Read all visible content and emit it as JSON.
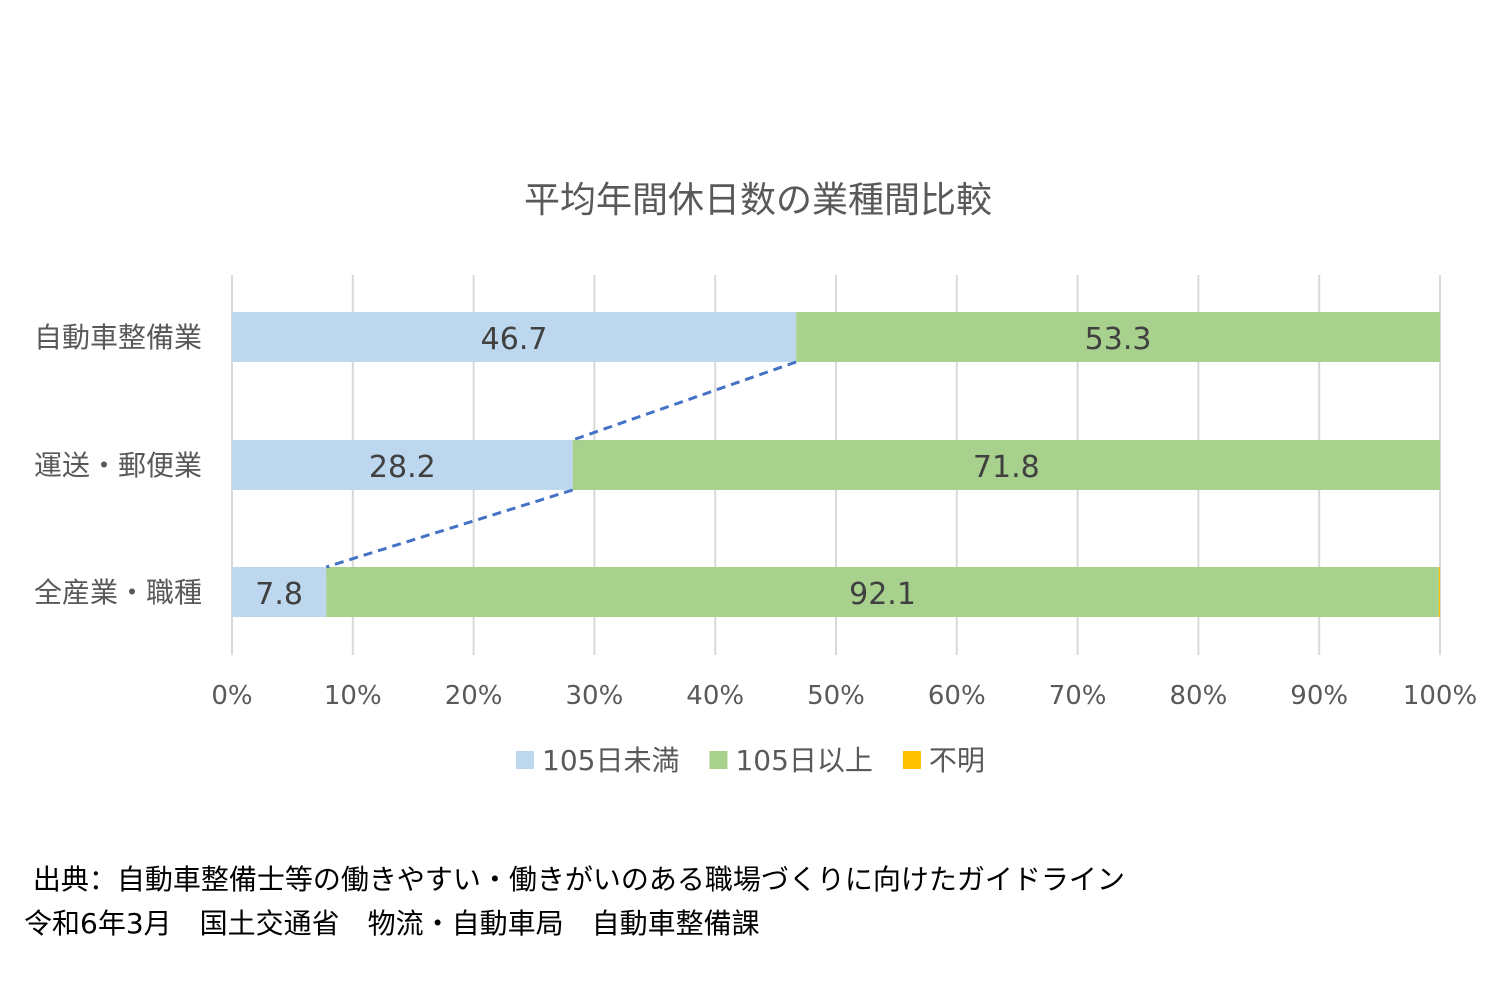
{
  "chart_data": {
    "type": "bar",
    "orientation": "horizontal",
    "stacked": "percent",
    "title": "平均年間休日数の業種間比較",
    "categories": [
      "自動車整備業",
      "運送・郵便業",
      "全産業・職種"
    ],
    "series": [
      {
        "name": "105日未満",
        "values": [
          46.7,
          28.2,
          7.8
        ],
        "labels": [
          "46.7",
          "28.2",
          "7.8"
        ],
        "color": "#bdd7ee"
      },
      {
        "name": "105日以上",
        "values": [
          53.3,
          71.8,
          92.1
        ],
        "labels": [
          "53.3",
          "71.8",
          "92.1"
        ],
        "color": "#a9d18e"
      },
      {
        "name": "不明",
        "values": [
          0,
          0,
          0.1
        ],
        "labels": [
          "",
          "",
          ""
        ],
        "color": "#ffc000"
      }
    ],
    "xlim": [
      0,
      100
    ],
    "xticks": [
      "0%",
      "10%",
      "20%",
      "30%",
      "40%",
      "50%",
      "60%",
      "70%",
      "80%",
      "90%",
      "100%"
    ],
    "grid": true,
    "legend": "bottom",
    "series_lines": {
      "color": "#4472c4",
      "style": "dashed"
    }
  },
  "source": {
    "line1": " 出典：自動車整備士等の働きやすい・働きがいのある職場づくりに向けたガイドライン",
    "line2": "令和6年3月　国土交通省　物流・自動車局　自動車整備課"
  }
}
